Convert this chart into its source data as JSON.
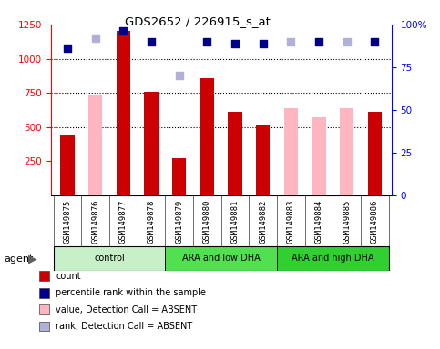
{
  "title": "GDS2652 / 226915_s_at",
  "samples": [
    "GSM149875",
    "GSM149876",
    "GSM149877",
    "GSM149878",
    "GSM149879",
    "GSM149880",
    "GSM149881",
    "GSM149882",
    "GSM149883",
    "GSM149884",
    "GSM149885",
    "GSM149886"
  ],
  "groups": [
    {
      "label": "control",
      "color": "#c8f0c8",
      "indices": [
        0,
        1,
        2,
        3
      ]
    },
    {
      "label": "ARA and low DHA",
      "color": "#50e050",
      "indices": [
        4,
        5,
        6,
        7
      ]
    },
    {
      "label": "ARA and high DHA",
      "color": "#30d030",
      "indices": [
        8,
        9,
        10,
        11
      ]
    }
  ],
  "bar_values": [
    440,
    null,
    1200,
    760,
    270,
    860,
    610,
    510,
    null,
    null,
    null,
    610
  ],
  "bar_absent_values": [
    null,
    730,
    null,
    null,
    null,
    null,
    null,
    null,
    640,
    570,
    640,
    null
  ],
  "pct_present": [
    86,
    null,
    96,
    90,
    null,
    90,
    89,
    89,
    null,
    90,
    null,
    90
  ],
  "pct_absent": [
    null,
    92,
    null,
    null,
    70,
    null,
    null,
    null,
    90,
    null,
    90,
    null
  ],
  "ylim_left": [
    0,
    1250
  ],
  "ylim_right": [
    0,
    100
  ],
  "yticks_left": [
    250,
    500,
    750,
    1000,
    1250
  ],
  "yticks_right": [
    0,
    25,
    50,
    75,
    100
  ],
  "right_tick_labels": [
    "0",
    "25",
    "50",
    "75",
    "100%"
  ],
  "bar_color_present": "#cc0000",
  "bar_color_absent": "#ffb6c1",
  "dot_color_present": "#00008b",
  "dot_color_absent": "#b0b0d8",
  "legend_items": [
    {
      "color": "#cc0000",
      "label": "count"
    },
    {
      "color": "#00008b",
      "label": "percentile rank within the sample"
    },
    {
      "color": "#ffb6c1",
      "label": "value, Detection Call = ABSENT"
    },
    {
      "color": "#b0b0d8",
      "label": "rank, Detection Call = ABSENT"
    }
  ],
  "agent_label": "agent",
  "bar_width": 0.5,
  "xticklabel_bg": "#d8d8d8",
  "group_border_color": "#000000"
}
